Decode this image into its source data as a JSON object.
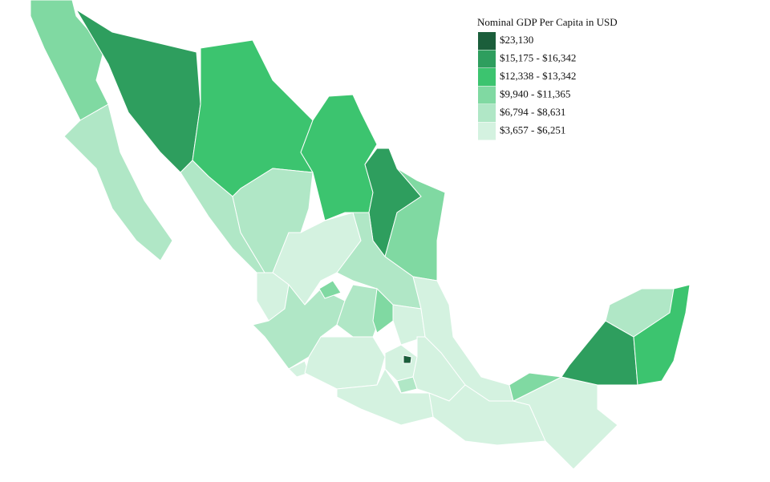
{
  "legend": {
    "title": "Nominal GDP Per Capita in USD",
    "items": [
      {
        "label": "$23,130",
        "color": "#1b5e3b"
      },
      {
        "label": "$15,175 - $16,342",
        "color": "#2e9e5e"
      },
      {
        "label": "$12,338 - $13,342",
        "color": "#3cc46f"
      },
      {
        "label": "$9,940 - $11,365",
        "color": "#80d9a2"
      },
      {
        "label": "$6,794 - $8,631",
        "color": "#b0e7c6"
      },
      {
        "label": "$3,657 - $6,251",
        "color": "#d4f2e0"
      }
    ]
  }
}
